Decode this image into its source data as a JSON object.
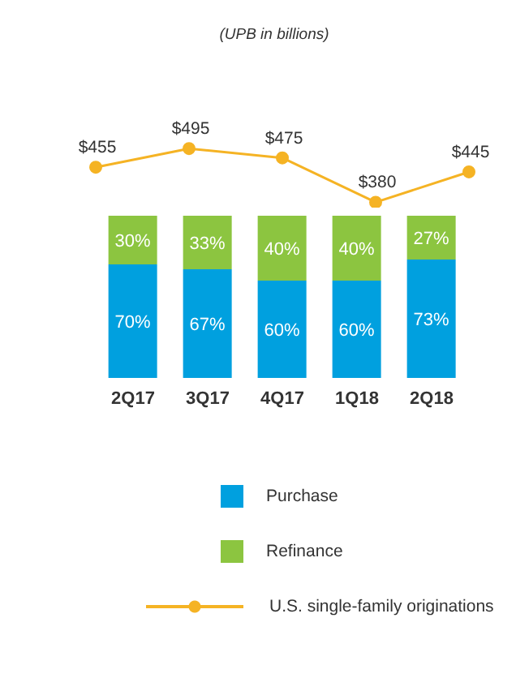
{
  "chart_data": [
    {
      "type": "line",
      "subtitle": "(UPB in billions)",
      "categories": [
        null,
        null,
        null,
        null,
        null
      ],
      "tick_labels": false,
      "legend": "bottom",
      "marker": "circle",
      "series": [
        {
          "name": "U.S. single-family originations",
          "color": "#f5b324",
          "values": [
            455,
            495,
            475,
            380,
            445
          ],
          "value_labels": [
            "$455",
            "$495",
            "$475",
            "$380",
            "$445"
          ]
        }
      ]
    },
    {
      "type": "bar",
      "categories": [
        "2Q17",
        "3Q17",
        "4Q17",
        "1Q18",
        "2Q18"
      ],
      "stacked": true,
      "tick_labels": "x",
      "legend": "bottom",
      "series": [
        {
          "name": "Purchase",
          "color": "#00a0df",
          "values": [
            70,
            67,
            60,
            60,
            73
          ],
          "value_labels": [
            "70%",
            "67%",
            "60%",
            "60%",
            "73%"
          ]
        },
        {
          "name": "Refinance",
          "color": "#8cc540",
          "values": [
            30,
            33,
            40,
            40,
            27
          ],
          "value_labels": [
            "30%",
            "33%",
            "40%",
            "40%",
            "27%"
          ]
        }
      ]
    }
  ]
}
